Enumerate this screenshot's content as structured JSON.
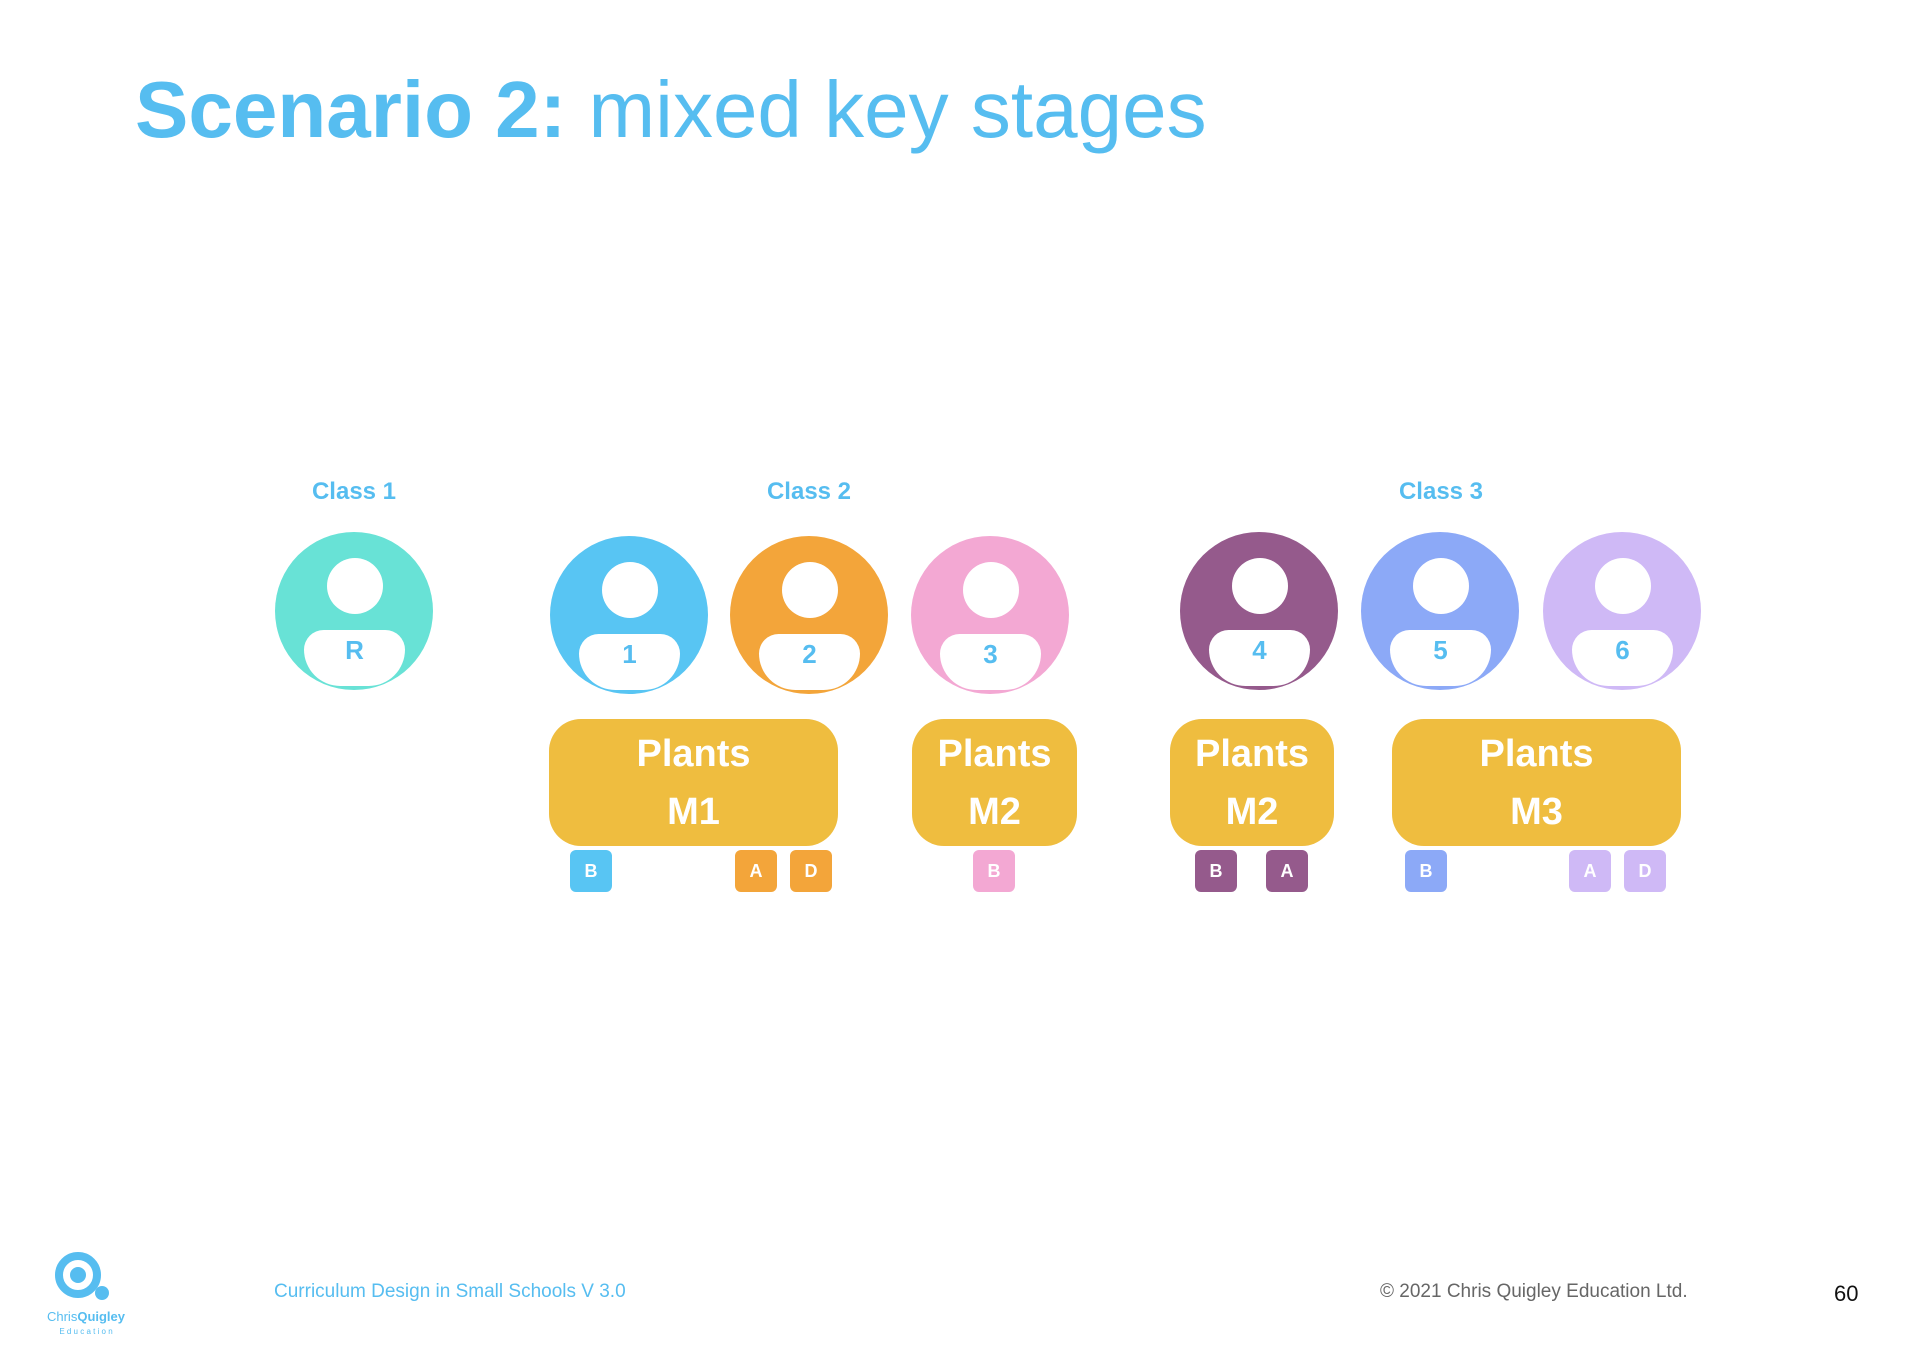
{
  "title": {
    "bold": "Scenario 2:",
    "rest": " mixed key stages"
  },
  "colors": {
    "accent": "#56bdf0",
    "unit": "#efbd3f",
    "reception": "#68e2d6",
    "year1": "#58c5f3",
    "year2": "#f3a53a",
    "year3": "#f3a8d3",
    "year4": "#955a8c",
    "year5": "#8ca9f7",
    "year6": "#cfb9f6"
  },
  "classes": [
    {
      "label": "Class 1"
    },
    {
      "label": "Class 2"
    },
    {
      "label": "Class 3"
    }
  ],
  "years": [
    {
      "label": "R",
      "color": "#68e2d6"
    },
    {
      "label": "1",
      "color": "#58c5f3"
    },
    {
      "label": "2",
      "color": "#f3a53a"
    },
    {
      "label": "3",
      "color": "#f3a8d3"
    },
    {
      "label": "4",
      "color": "#955a8c"
    },
    {
      "label": "5",
      "color": "#8ca9f7"
    },
    {
      "label": "6",
      "color": "#cfb9f6"
    }
  ],
  "units": [
    {
      "line1": "Plants",
      "line2": "M1"
    },
    {
      "line1": "Plants",
      "line2": "M2"
    },
    {
      "line1": "Plants",
      "line2": "M2"
    },
    {
      "line1": "Plants",
      "line2": "M3"
    }
  ],
  "tags": [
    {
      "label": "B",
      "color": "#58c5f3"
    },
    {
      "label": "A",
      "color": "#f3a53a"
    },
    {
      "label": "D",
      "color": "#f3a53a"
    },
    {
      "label": "B",
      "color": "#f3a8d3"
    },
    {
      "label": "B",
      "color": "#955a8c"
    },
    {
      "label": "A",
      "color": "#955a8c"
    },
    {
      "label": "B",
      "color": "#8ca9f7"
    },
    {
      "label": "A",
      "color": "#cfb9f6"
    },
    {
      "label": "D",
      "color": "#cfb9f6"
    }
  ],
  "footer": {
    "document": "Curriculum Design in Small Schools V 3.0",
    "copyright": "© 2021 Chris Quigley Education Ltd.",
    "page_number": "60"
  },
  "logo": {
    "name_part1": "Chris",
    "name_part2": "Quigley",
    "tagline": "E d u c a t i o n"
  }
}
